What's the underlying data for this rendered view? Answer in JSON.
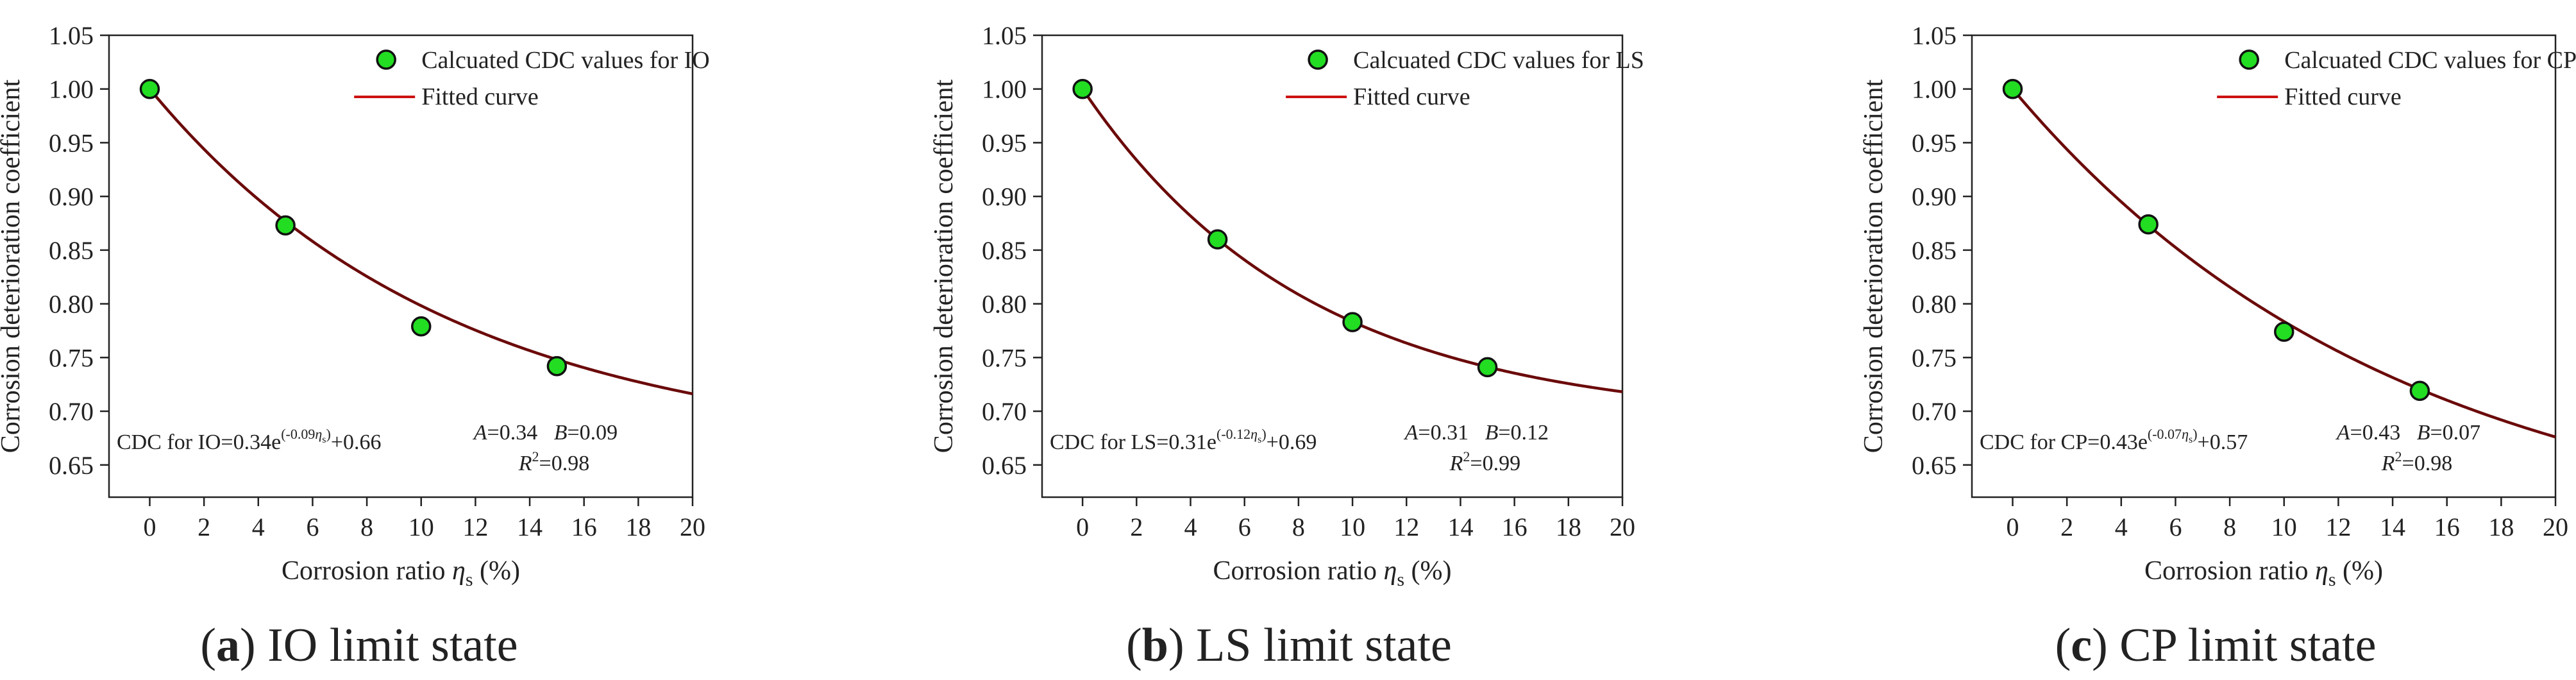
{
  "figure": {
    "panels": [
      {
        "caption_letter": "a",
        "caption_text": " IO limit state"
      },
      {
        "caption_letter": "b",
        "caption_text": " LS limit state"
      },
      {
        "caption_letter": "c",
        "caption_text": " CP limit state"
      }
    ]
  },
  "chart_data": [
    {
      "type": "scatter",
      "xlabel_main": "Corrosion ratio ",
      "xlabel_sym": "η",
      "xlabel_sub": "s",
      "xlabel_unit": " (%)",
      "ylabel": "Corrosion deterioration coefficient",
      "xlim": [
        -1.5,
        20
      ],
      "ylim": [
        0.62,
        1.05
      ],
      "xticks": [
        0,
        2,
        4,
        6,
        8,
        10,
        12,
        14,
        16,
        18,
        20
      ],
      "yticks": [
        0.65,
        0.7,
        0.75,
        0.8,
        0.85,
        0.9,
        0.95,
        1.0,
        1.05
      ],
      "grid": false,
      "legend_position": "top-right",
      "series": [
        {
          "name": "Calcuated CDC values for IO",
          "kind": "scatter",
          "color": "#22dd22",
          "x": [
            0,
            5,
            10,
            15
          ],
          "y": [
            1.0,
            0.873,
            0.779,
            0.742
          ]
        },
        {
          "name": "Fitted curve",
          "kind": "line",
          "color": "#cc1111",
          "formula": {
            "A": 0.34,
            "k": -0.09,
            "C": 0.66
          }
        }
      ],
      "equation": {
        "prefix": "CDC for IO=0.34e",
        "exponent": "(-0.09",
        "exp_sub": "s",
        "suffix": ")+0.66"
      },
      "params": {
        "A": "A",
        "A_val": "=0.34",
        "B": "B",
        "B_val": "=0.09",
        "R": "R",
        "R_sup": "2",
        "R_val": "=0.98"
      }
    },
    {
      "type": "scatter",
      "xlabel_main": "Corrosion ratio ",
      "xlabel_sym": "η",
      "xlabel_sub": "s",
      "xlabel_unit": " (%)",
      "ylabel": "Corrosion deterioration coefficient",
      "xlim": [
        -1.5,
        20
      ],
      "ylim": [
        0.62,
        1.05
      ],
      "xticks": [
        0,
        2,
        4,
        6,
        8,
        10,
        12,
        14,
        16,
        18,
        20
      ],
      "yticks": [
        0.65,
        0.7,
        0.75,
        0.8,
        0.85,
        0.9,
        0.95,
        1.0,
        1.05
      ],
      "grid": false,
      "legend_position": "top-right",
      "series": [
        {
          "name": "Calcuated CDC values for LS",
          "kind": "scatter",
          "color": "#22dd22",
          "x": [
            0,
            5,
            10,
            15
          ],
          "y": [
            1.0,
            0.86,
            0.783,
            0.741
          ]
        },
        {
          "name": "Fitted curve",
          "kind": "line",
          "color": "#cc1111",
          "formula": {
            "A": 0.31,
            "k": -0.12,
            "C": 0.69
          }
        }
      ],
      "equation": {
        "prefix": "CDC for LS=0.31e",
        "exponent": "(-0.12",
        "exp_sub": "s",
        "suffix": ")+0.69"
      },
      "params": {
        "A": "A",
        "A_val": "=0.31",
        "B": "B",
        "B_val": "=0.12",
        "R": "R",
        "R_sup": "2",
        "R_val": "=0.99"
      }
    },
    {
      "type": "scatter",
      "xlabel_main": "Corrosion ratio ",
      "xlabel_sym": "η",
      "xlabel_sub": "s",
      "xlabel_unit": " (%)",
      "ylabel": "Corrosion deterioration coefficient",
      "xlim": [
        -1.5,
        20
      ],
      "ylim": [
        0.62,
        1.05
      ],
      "xticks": [
        0,
        2,
        4,
        6,
        8,
        10,
        12,
        14,
        16,
        18,
        20
      ],
      "yticks": [
        0.65,
        0.7,
        0.75,
        0.8,
        0.85,
        0.9,
        0.95,
        1.0,
        1.05
      ],
      "grid": false,
      "legend_position": "top-right",
      "series": [
        {
          "name": "Calcuated CDC values for CP",
          "kind": "scatter",
          "color": "#22dd22",
          "x": [
            0,
            5,
            10,
            15
          ],
          "y": [
            1.0,
            0.874,
            0.774,
            0.719
          ]
        },
        {
          "name": "Fitted curve",
          "kind": "line",
          "color": "#cc1111",
          "formula": {
            "A": 0.43,
            "k": -0.07,
            "C": 0.57
          }
        }
      ],
      "equation": {
        "prefix": "CDC for CP=0.43e",
        "exponent": "(-0.07",
        "exp_sub": "s",
        "suffix": ")+0.57"
      },
      "params": {
        "A": "A",
        "A_val": "=0.43",
        "B": "B",
        "B_val": "=0.07",
        "R": "R",
        "R_sup": "2",
        "R_val": "=0.98"
      }
    }
  ]
}
